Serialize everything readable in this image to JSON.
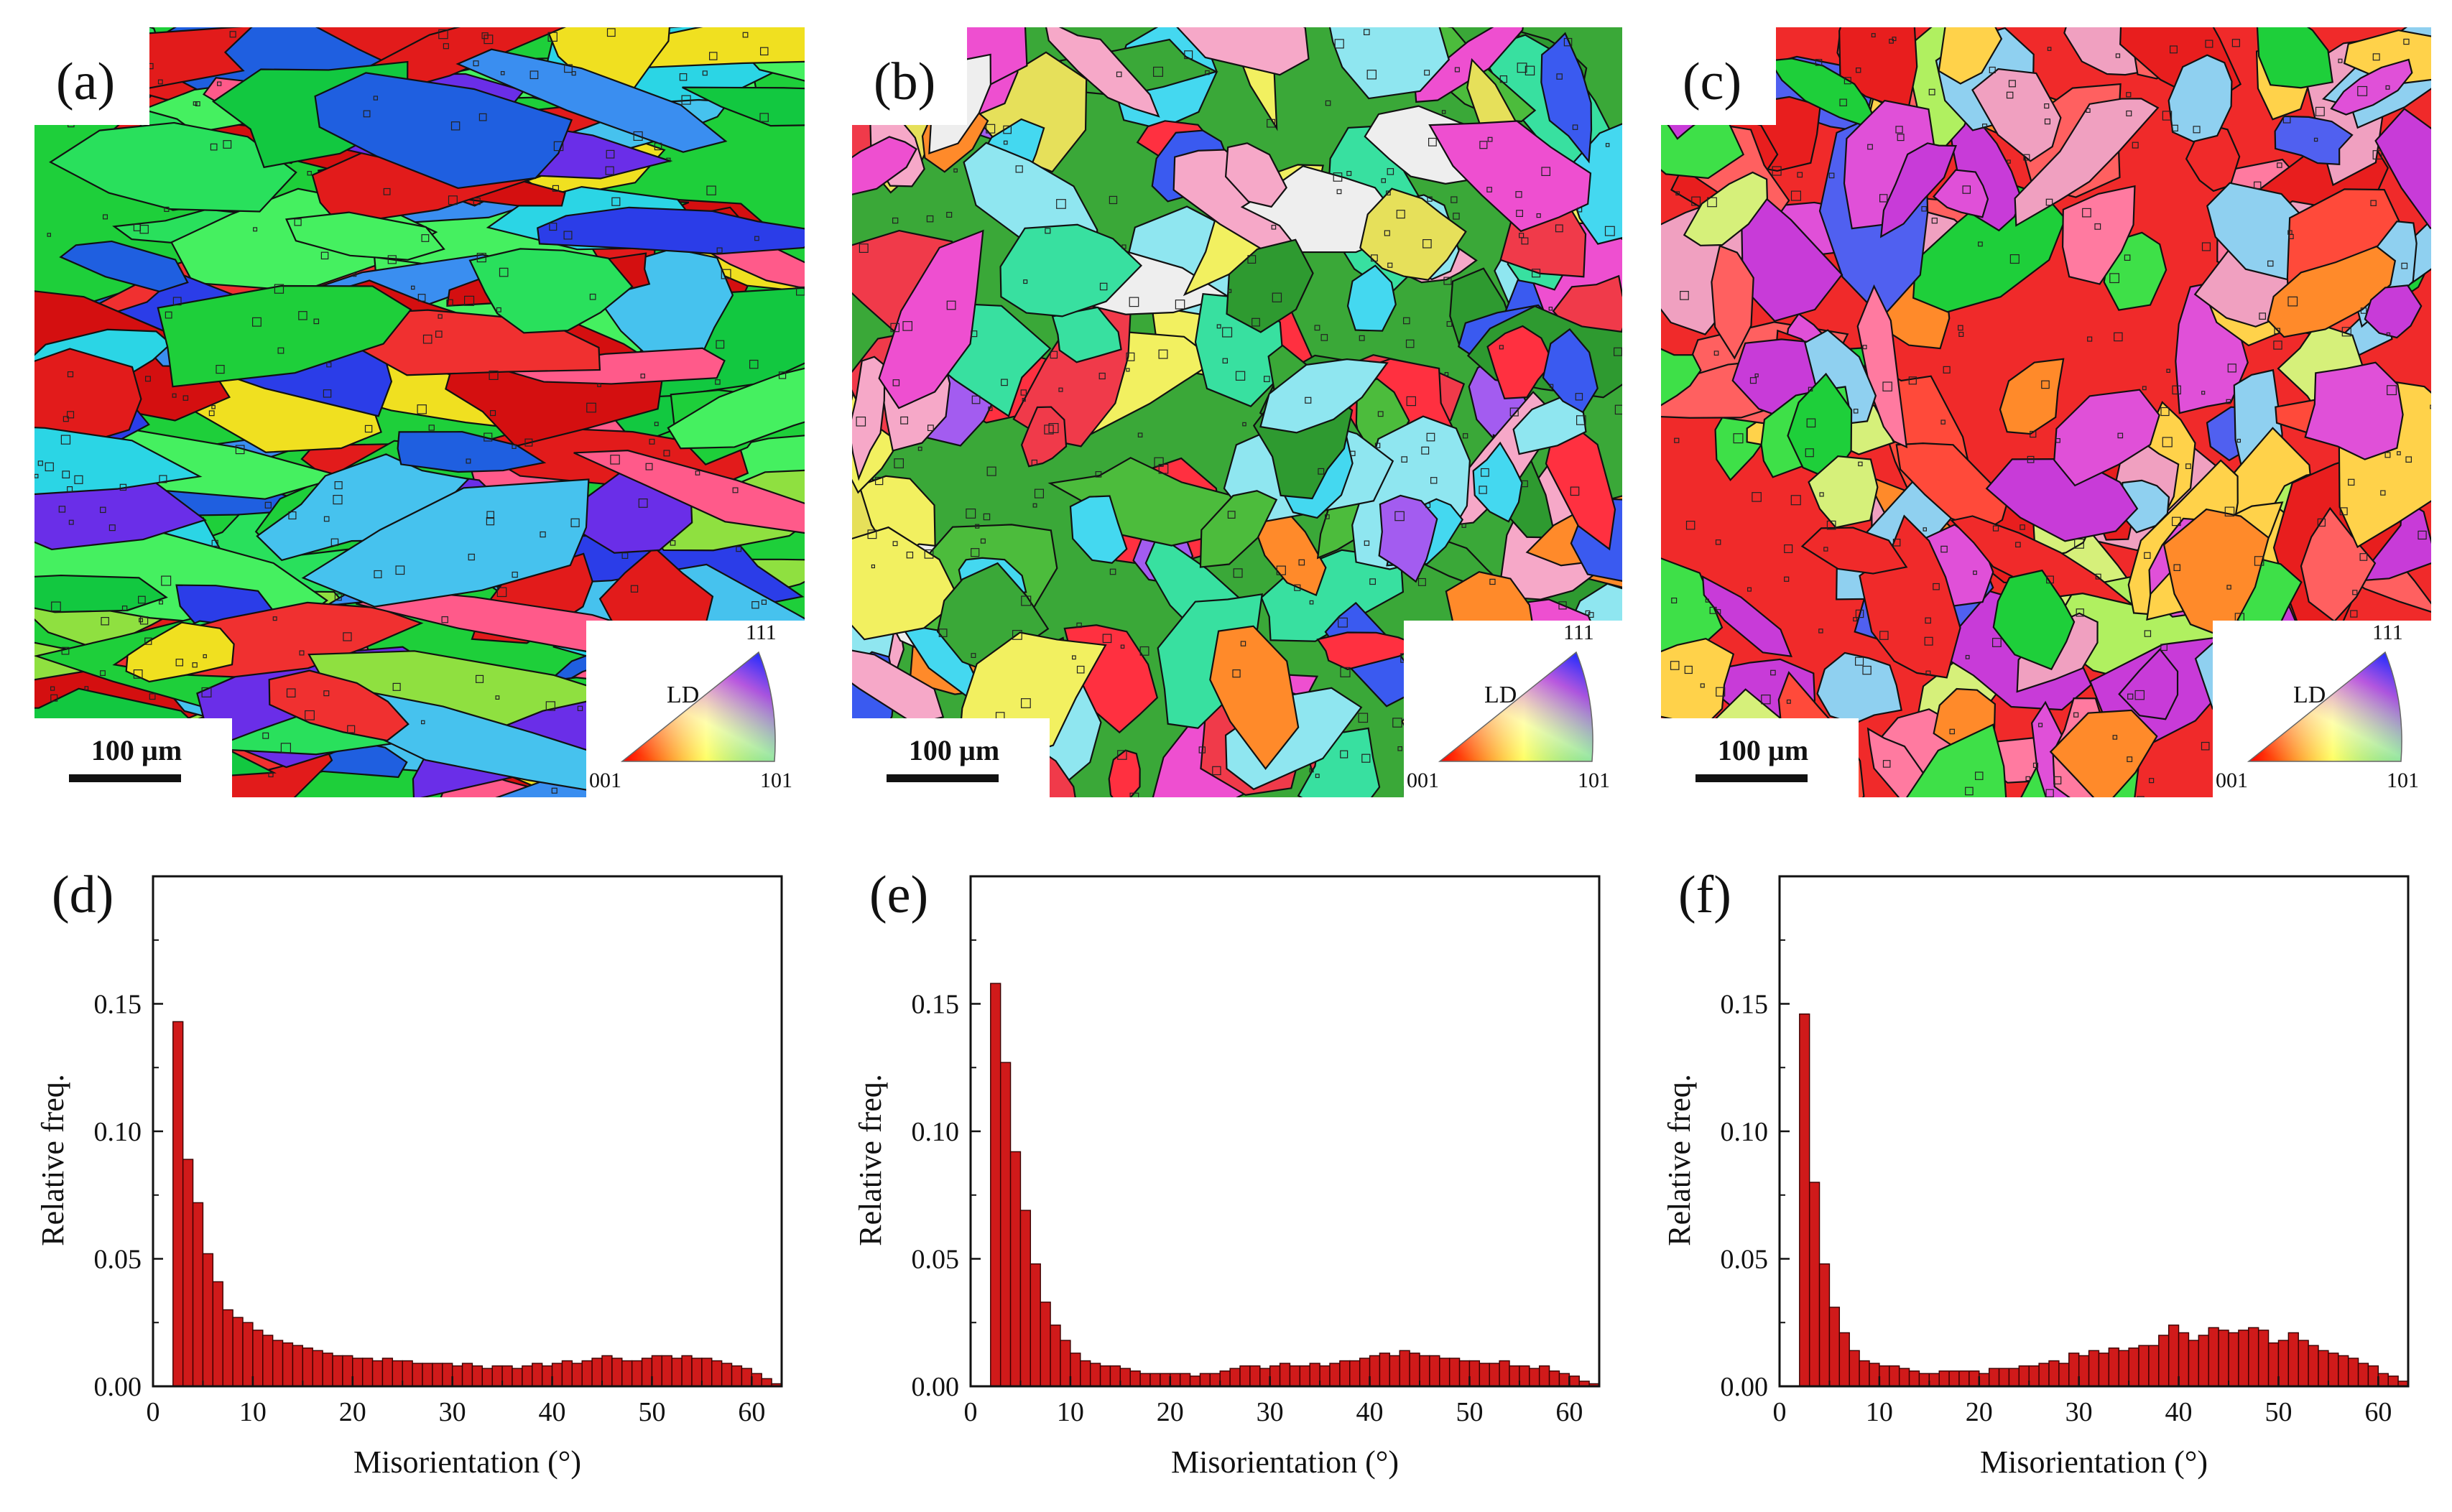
{
  "maps": [
    {
      "label": "(a)",
      "scale_bar": "100 µm",
      "ipf": {
        "ld": "LD",
        "v001": "001",
        "v101": "101",
        "v111": "111"
      },
      "palette": [
        "#1ecf3a",
        "#29e05c",
        "#12c840",
        "#45f060",
        "#e21b1b",
        "#f03030",
        "#d40f10",
        "#2bd5e5",
        "#46c2ee",
        "#1f5fe0",
        "#2b3de8",
        "#6a2ee8",
        "#ff5a8a",
        "#3a8ef0",
        "#8fe040",
        "#f0e020"
      ]
    },
    {
      "label": "(b)",
      "scale_bar": "100 µm",
      "ipf": {
        "ld": "LD",
        "v001": "001",
        "v101": "101",
        "v111": "111"
      },
      "palette": [
        "#3aa838",
        "#4cbc3c",
        "#2e9a30",
        "#f03a4a",
        "#e6e05a",
        "#ee4fd0",
        "#a35cf0",
        "#38e0a0",
        "#f6a8c8",
        "#eeeeee",
        "#ff8a2a",
        "#3a5af0",
        "#8fe6f0",
        "#ff3040",
        "#f2f060",
        "#44d8f0"
      ]
    },
    {
      "label": "(c)",
      "scale_bar": "100 µm",
      "ipf": {
        "ld": "LD",
        "v001": "001",
        "v101": "101",
        "v111": "111"
      },
      "palette": [
        "#f02a2a",
        "#e81e1e",
        "#ff4a3a",
        "#ff8a2a",
        "#d6f07a",
        "#3ee048",
        "#f0a0c0",
        "#e050d8",
        "#5060f0",
        "#8fd0f0",
        "#ffd24a",
        "#1ecf3a",
        "#ff6060",
        "#b0f060",
        "#ff7aa0",
        "#c83bd8"
      ]
    }
  ],
  "chart_data": [
    {
      "type": "bar",
      "label": "(d)",
      "xlabel": "Misorientation (°)",
      "ylabel": "Relative freq.",
      "xlim": [
        0,
        63
      ],
      "ylim": [
        0,
        0.2
      ],
      "xticks": [
        0,
        10,
        20,
        30,
        40,
        50,
        60
      ],
      "yticks": [
        0.0,
        0.05,
        0.1,
        0.15
      ],
      "ytick_labels": [
        "0.00",
        "0.05",
        "0.10",
        "0.15"
      ],
      "xtick_labels": [
        "0",
        "10",
        "20",
        "30",
        "40",
        "50",
        "60"
      ],
      "bin_start": 2,
      "bin_width": 1,
      "values": [
        0.143,
        0.089,
        0.072,
        0.052,
        0.041,
        0.03,
        0.027,
        0.025,
        0.022,
        0.02,
        0.018,
        0.017,
        0.016,
        0.015,
        0.014,
        0.013,
        0.012,
        0.012,
        0.011,
        0.011,
        0.01,
        0.011,
        0.01,
        0.01,
        0.009,
        0.009,
        0.009,
        0.009,
        0.008,
        0.009,
        0.008,
        0.007,
        0.008,
        0.008,
        0.007,
        0.008,
        0.009,
        0.008,
        0.009,
        0.01,
        0.009,
        0.01,
        0.011,
        0.012,
        0.011,
        0.01,
        0.01,
        0.011,
        0.012,
        0.012,
        0.011,
        0.012,
        0.011,
        0.011,
        0.01,
        0.009,
        0.008,
        0.007,
        0.005,
        0.003,
        0.001
      ]
    },
    {
      "type": "bar",
      "label": "(e)",
      "xlabel": "Misorientation (°)",
      "ylabel": "Relative freq.",
      "xlim": [
        0,
        63
      ],
      "ylim": [
        0,
        0.2
      ],
      "xticks": [
        0,
        10,
        20,
        30,
        40,
        50,
        60
      ],
      "yticks": [
        0.0,
        0.05,
        0.1,
        0.15
      ],
      "ytick_labels": [
        "0.00",
        "0.05",
        "0.10",
        "0.15"
      ],
      "xtick_labels": [
        "0",
        "10",
        "20",
        "30",
        "40",
        "50",
        "60"
      ],
      "bin_start": 2,
      "bin_width": 1,
      "values": [
        0.158,
        0.127,
        0.092,
        0.069,
        0.048,
        0.033,
        0.024,
        0.018,
        0.013,
        0.01,
        0.009,
        0.008,
        0.008,
        0.007,
        0.006,
        0.005,
        0.005,
        0.005,
        0.005,
        0.005,
        0.004,
        0.005,
        0.005,
        0.006,
        0.007,
        0.008,
        0.008,
        0.007,
        0.008,
        0.009,
        0.008,
        0.008,
        0.009,
        0.008,
        0.009,
        0.01,
        0.01,
        0.011,
        0.012,
        0.013,
        0.012,
        0.014,
        0.013,
        0.012,
        0.012,
        0.011,
        0.011,
        0.01,
        0.01,
        0.009,
        0.009,
        0.01,
        0.008,
        0.008,
        0.007,
        0.008,
        0.006,
        0.005,
        0.004,
        0.002,
        0.001
      ]
    },
    {
      "type": "bar",
      "label": "(f)",
      "xlabel": "Misorientation (°)",
      "ylabel": "Relative freq.",
      "xlim": [
        0,
        63
      ],
      "ylim": [
        0,
        0.2
      ],
      "xticks": [
        0,
        10,
        20,
        30,
        40,
        50,
        60
      ],
      "yticks": [
        0.0,
        0.05,
        0.1,
        0.15
      ],
      "ytick_labels": [
        "0.00",
        "0.05",
        "0.10",
        "0.15"
      ],
      "xtick_labels": [
        "0",
        "10",
        "20",
        "30",
        "40",
        "50",
        "60"
      ],
      "bin_start": 2,
      "bin_width": 1,
      "values": [
        0.146,
        0.08,
        0.048,
        0.031,
        0.021,
        0.014,
        0.01,
        0.009,
        0.008,
        0.008,
        0.007,
        0.006,
        0.005,
        0.005,
        0.006,
        0.006,
        0.006,
        0.006,
        0.005,
        0.007,
        0.007,
        0.007,
        0.008,
        0.008,
        0.009,
        0.01,
        0.009,
        0.013,
        0.012,
        0.014,
        0.013,
        0.015,
        0.014,
        0.015,
        0.016,
        0.016,
        0.02,
        0.024,
        0.021,
        0.018,
        0.02,
        0.023,
        0.022,
        0.021,
        0.022,
        0.023,
        0.022,
        0.017,
        0.018,
        0.021,
        0.018,
        0.016,
        0.014,
        0.013,
        0.012,
        0.011,
        0.009,
        0.008,
        0.005,
        0.004,
        0.002
      ]
    }
  ]
}
